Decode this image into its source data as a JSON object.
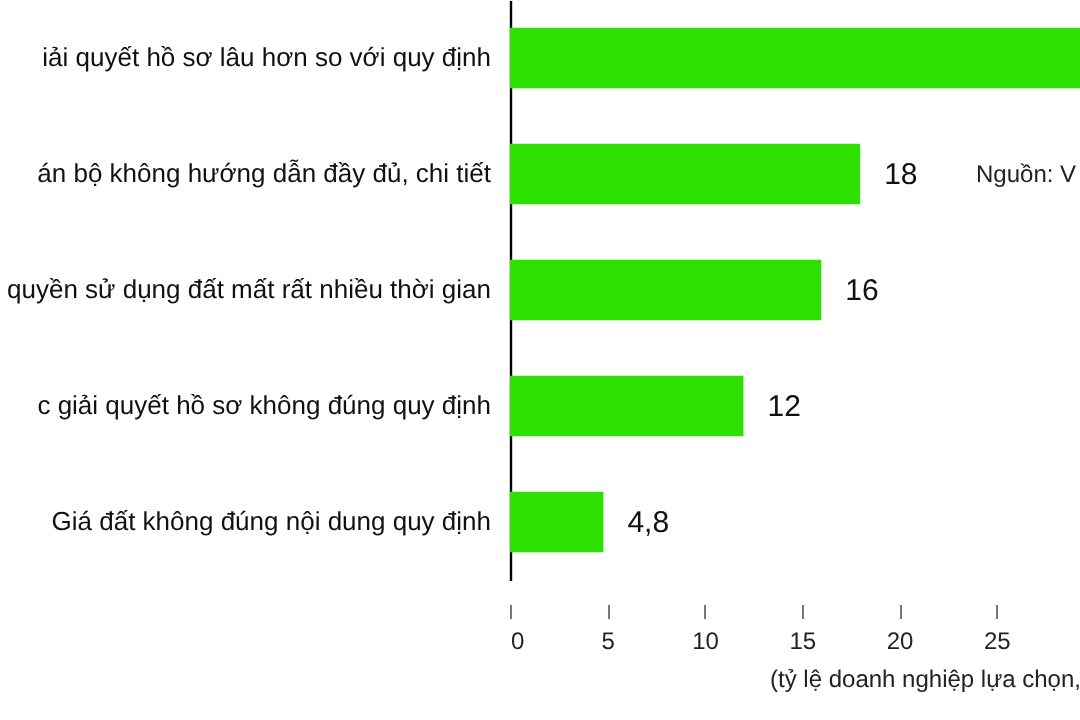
{
  "chart_data": {
    "type": "bar",
    "orientation": "horizontal",
    "categories": [
      "iải quyết hồ sơ lâu hơn so với quy định",
      "án bộ không hướng dẫn đầy đủ, chi tiết",
      "quyền sử dụng đất mất rất nhiều thời gian",
      "c giải quyết hồ sơ không đúng quy định",
      "Giá đất không đúng nội dung quy định"
    ],
    "values": [
      29.3,
      18,
      16,
      12,
      4.8
    ],
    "value_labels": [
      null,
      "18",
      "16",
      "12",
      "4,8"
    ],
    "color": "#2ee000",
    "xlim": [
      0,
      29.3
    ],
    "xticks": [
      0,
      5,
      10,
      15,
      20,
      25
    ],
    "xlabel": "(tỷ lệ doanh nghiệp lựa chọn,",
    "annotations": [
      "Nguồn: V"
    ],
    "grid": false
  }
}
